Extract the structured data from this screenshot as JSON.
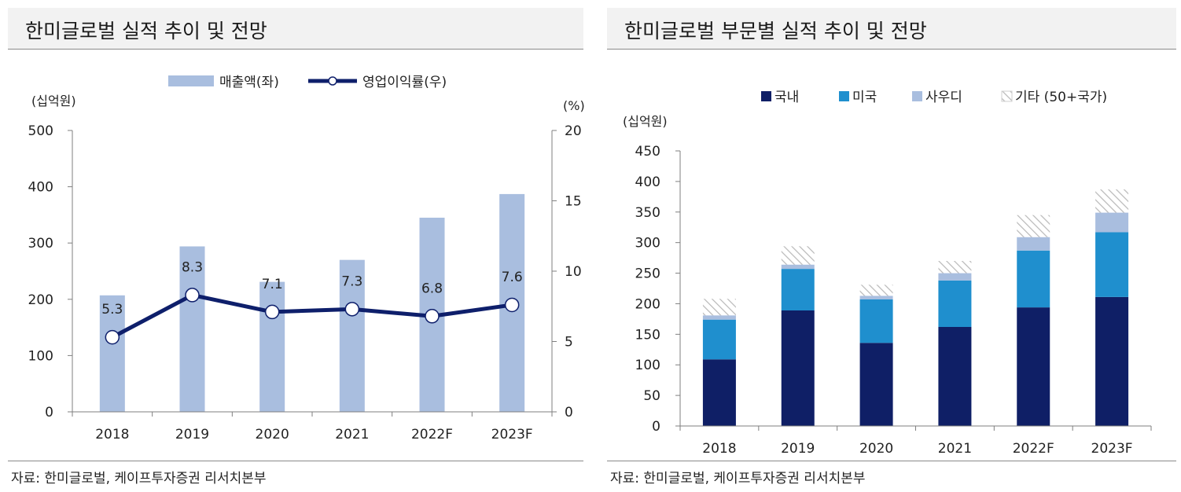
{
  "chart_data": [
    {
      "type": "bar",
      "combo": "bar+line",
      "title": "한미글로벌 실적 추이 및 전망",
      "categories": [
        "2018",
        "2019",
        "2020",
        "2021",
        "2022F",
        "2023F"
      ],
      "series": [
        {
          "name": "매출액(좌)",
          "type": "bar",
          "axis": "left",
          "values": [
            207,
            294,
            231,
            270,
            345,
            387
          ]
        },
        {
          "name": "영업이익률(우)",
          "type": "line",
          "axis": "right",
          "values": [
            5.3,
            8.3,
            7.1,
            7.3,
            6.8,
            7.6
          ]
        }
      ],
      "data_labels": [
        "5.3",
        "8.3",
        "7.1",
        "7.3",
        "6.8",
        "7.6"
      ],
      "ylabel_left": "(십억원)",
      "ylabel_right": "(%)",
      "ylim_left": [
        0,
        500
      ],
      "yticks_left": [
        "0",
        "100",
        "200",
        "300",
        "400",
        "500"
      ],
      "ylim_right": [
        0,
        20
      ],
      "yticks_right": [
        "0",
        "5",
        "10",
        "15",
        "20"
      ],
      "legend_position": "top",
      "grid": false,
      "source": "자료: 한미글로벌, 케이프투자증권 리서치본부",
      "colors": {
        "bar": "#a9bedf",
        "line": "#0e1f6b",
        "marker_fill": "#ffffff",
        "axis": "#7f7f7f"
      }
    },
    {
      "type": "bar",
      "stacked": true,
      "title": "한미글로벌 부문별 실적 추이 및 전망",
      "categories": [
        "2018",
        "2019",
        "2020",
        "2021",
        "2022F",
        "2023F"
      ],
      "series": [
        {
          "name": "국내",
          "values": [
            109,
            189,
            136,
            162,
            194,
            211
          ],
          "color": "#0f1f66"
        },
        {
          "name": "미국",
          "values": [
            65,
            68,
            71,
            76,
            93,
            106
          ],
          "color": "#1f8fce"
        },
        {
          "name": "사우디",
          "values": [
            7,
            7,
            6,
            12,
            22,
            32
          ],
          "color": "#a9bedf"
        },
        {
          "name": "기타 (50+국가)",
          "values": [
            27,
            30,
            18,
            20,
            36,
            38
          ],
          "color": "hatch"
        }
      ],
      "ylabel": "(십억원)",
      "ylim": [
        0,
        450
      ],
      "yticks": [
        "0",
        "50",
        "100",
        "150",
        "200",
        "250",
        "300",
        "350",
        "400",
        "450"
      ],
      "legend_position": "top",
      "grid": false,
      "source": "자료: 한미글로벌, 케이프투자증권 리서치본부",
      "colors": {
        "axis": "#7f7f7f",
        "hatch_line": "#b8b8b8"
      }
    }
  ]
}
